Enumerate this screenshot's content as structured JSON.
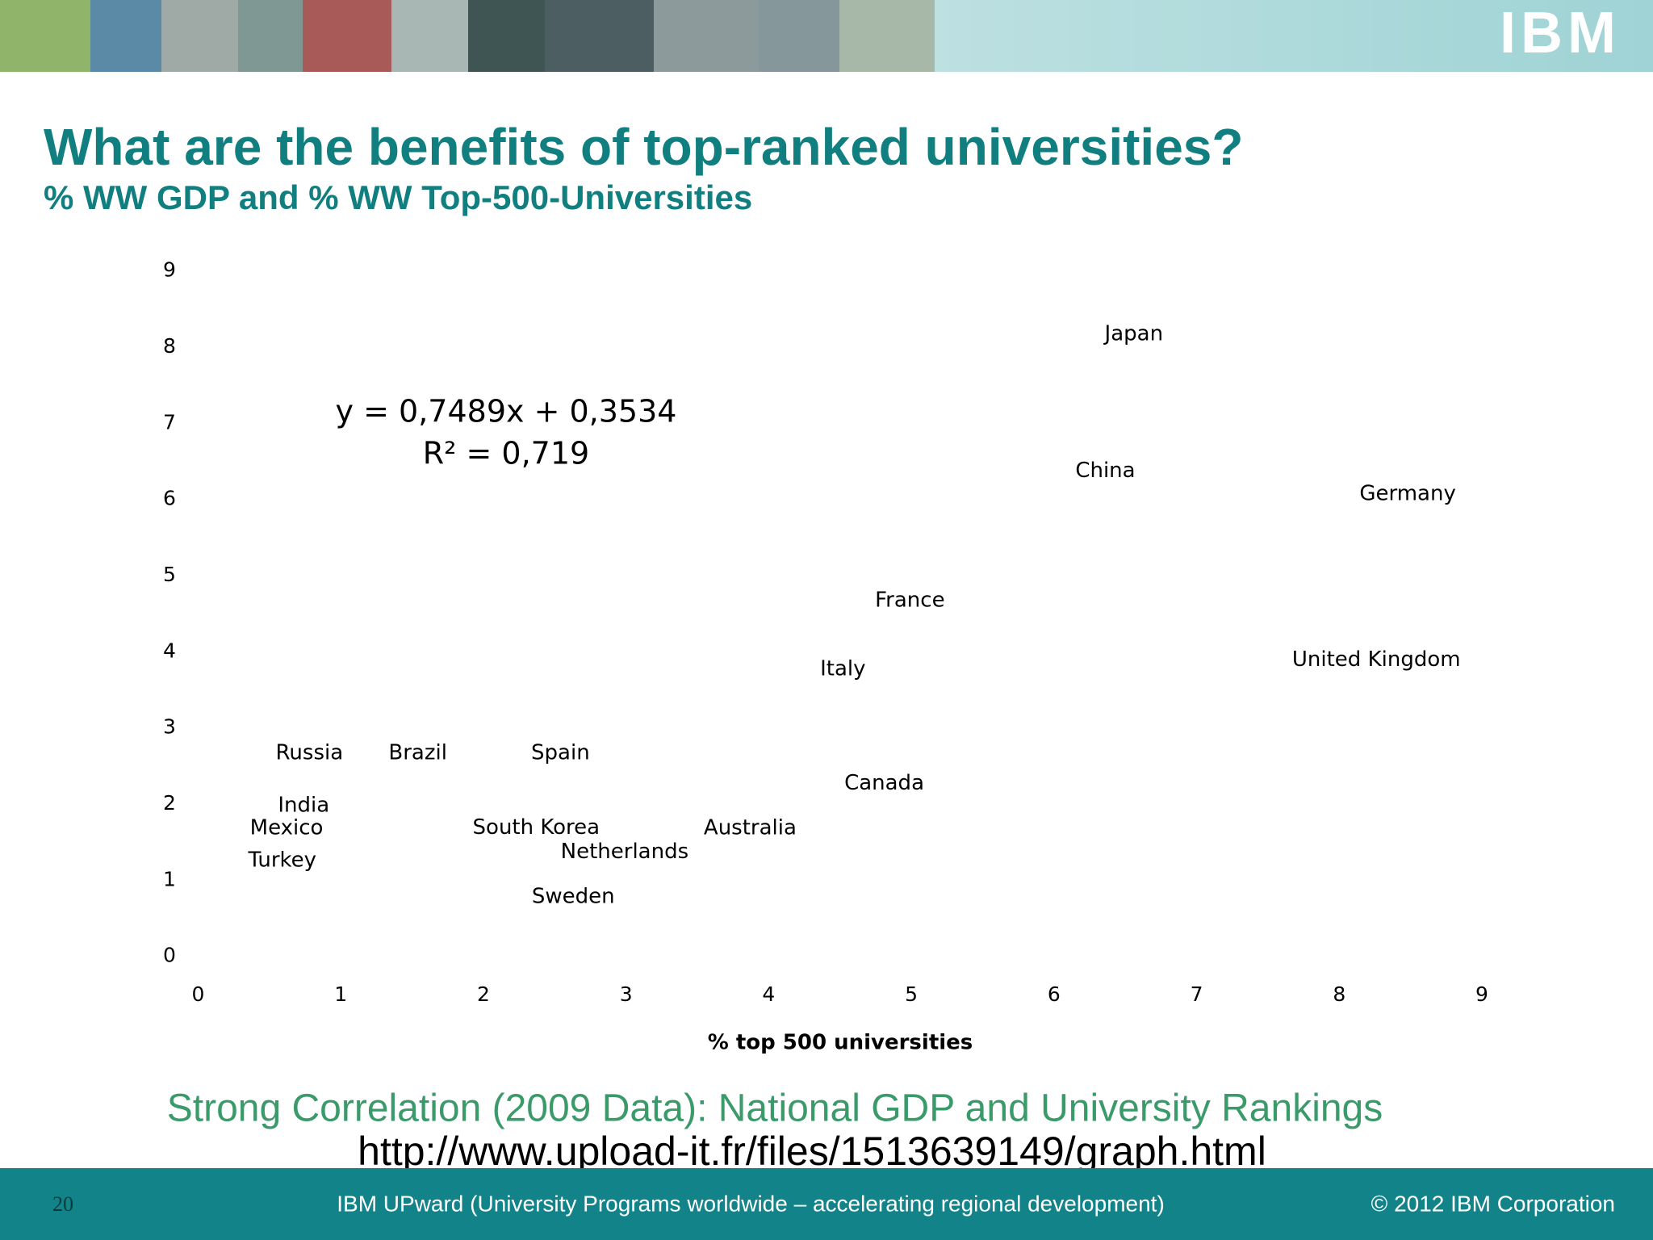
{
  "header": {
    "logo": "IBM"
  },
  "chart_data": {
    "type": "scatter",
    "title": "What are the benefits of top-ranked universities?",
    "subtitle": "% WW GDP and % WW Top-500-Universities",
    "xlabel": "% top 500 universities",
    "annotations": [
      "y = 0,7489x + 0,3534",
      "R² = 0,719"
    ],
    "point_labels": [
      "Japan",
      "China",
      "Germany",
      "France",
      "United Kingdom",
      "Italy",
      "Russia",
      "Brazil",
      "Spain",
      "Canada",
      "India",
      "Mexico",
      "South Korea",
      "Australia",
      "Netherlands",
      "Turkey",
      "Sweden"
    ],
    "x": [
      6.56,
      6.36,
      8.48,
      4.99,
      8.26,
      4.52,
      0.78,
      1.54,
      2.54,
      4.81,
      0.74,
      0.62,
      2.37,
      3.87,
      2.99,
      0.59,
      2.63
    ],
    "series": [
      {
        "color": "#000000",
        "values": [
          8.17,
          6.37,
          6.07,
          4.67,
          3.89,
          3.77,
          2.67,
          2.67,
          2.67,
          2.27,
          1.98,
          1.68,
          1.69,
          1.68,
          1.37,
          1.26,
          0.78
        ]
      }
    ],
    "xlim": [
      0,
      9
    ],
    "xticks": [
      0,
      1,
      2,
      3,
      4,
      5,
      6,
      7,
      8,
      9
    ],
    "ylim": [
      0,
      9
    ],
    "yticks": [
      0,
      1,
      2,
      3,
      4,
      5,
      6,
      7,
      8,
      9
    ],
    "grid": false
  },
  "caption": "Strong Correlation (2009 Data): National GDP and University Rankings",
  "url": "http://www.upload-it.fr/files/1513639149/graph.html",
  "footer": {
    "page": "20",
    "center": "IBM UPward (University Programs worldwide – accelerating regional development)",
    "right": "© 2012 IBM Corporation"
  }
}
